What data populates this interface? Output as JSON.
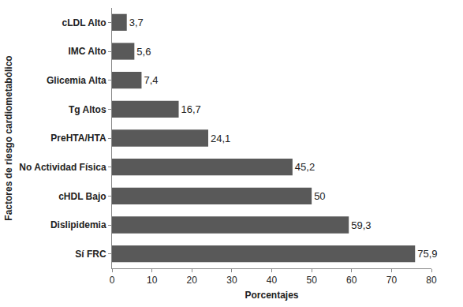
{
  "chart_data": {
    "type": "bar",
    "orientation": "horizontal",
    "categories": [
      "cLDL Alto",
      "IMC Alto",
      "Glicemia Alta",
      "Tg Altos",
      "PreHTA/HTA",
      "No Actividad Física",
      "cHDL Bajo",
      "Dislipidemia",
      "Sí FRC"
    ],
    "values": [
      3.7,
      5.6,
      7.4,
      16.7,
      24.1,
      45.2,
      50,
      59.3,
      75.9
    ],
    "value_labels": [
      "3,7",
      "5,6",
      "7,4",
      "16,7",
      "24,1",
      "45,2",
      "50",
      "59,3",
      "75,9"
    ],
    "color": "#595959",
    "xlabel": "Porcentajes",
    "ylabel": "Factores de riesgo cardiometabólico",
    "xlim": [
      0,
      80
    ],
    "xticks": [
      0,
      10,
      20,
      30,
      40,
      50,
      60,
      70,
      80
    ],
    "data_labels": true,
    "grid": false
  }
}
